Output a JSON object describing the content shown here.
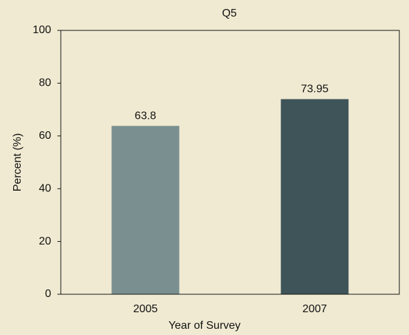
{
  "chart_data": {
    "type": "bar",
    "title": "Q5",
    "xlabel": "Year of Survey",
    "ylabel": "Percent (%)",
    "categories": [
      "2005",
      "2007"
    ],
    "values": [
      63.8,
      73.95
    ],
    "colors": [
      "#7a9090",
      "#3e5459"
    ],
    "ylim": [
      0,
      100
    ],
    "yticks": [
      0,
      20,
      40,
      60,
      80,
      100
    ],
    "grid": false
  }
}
